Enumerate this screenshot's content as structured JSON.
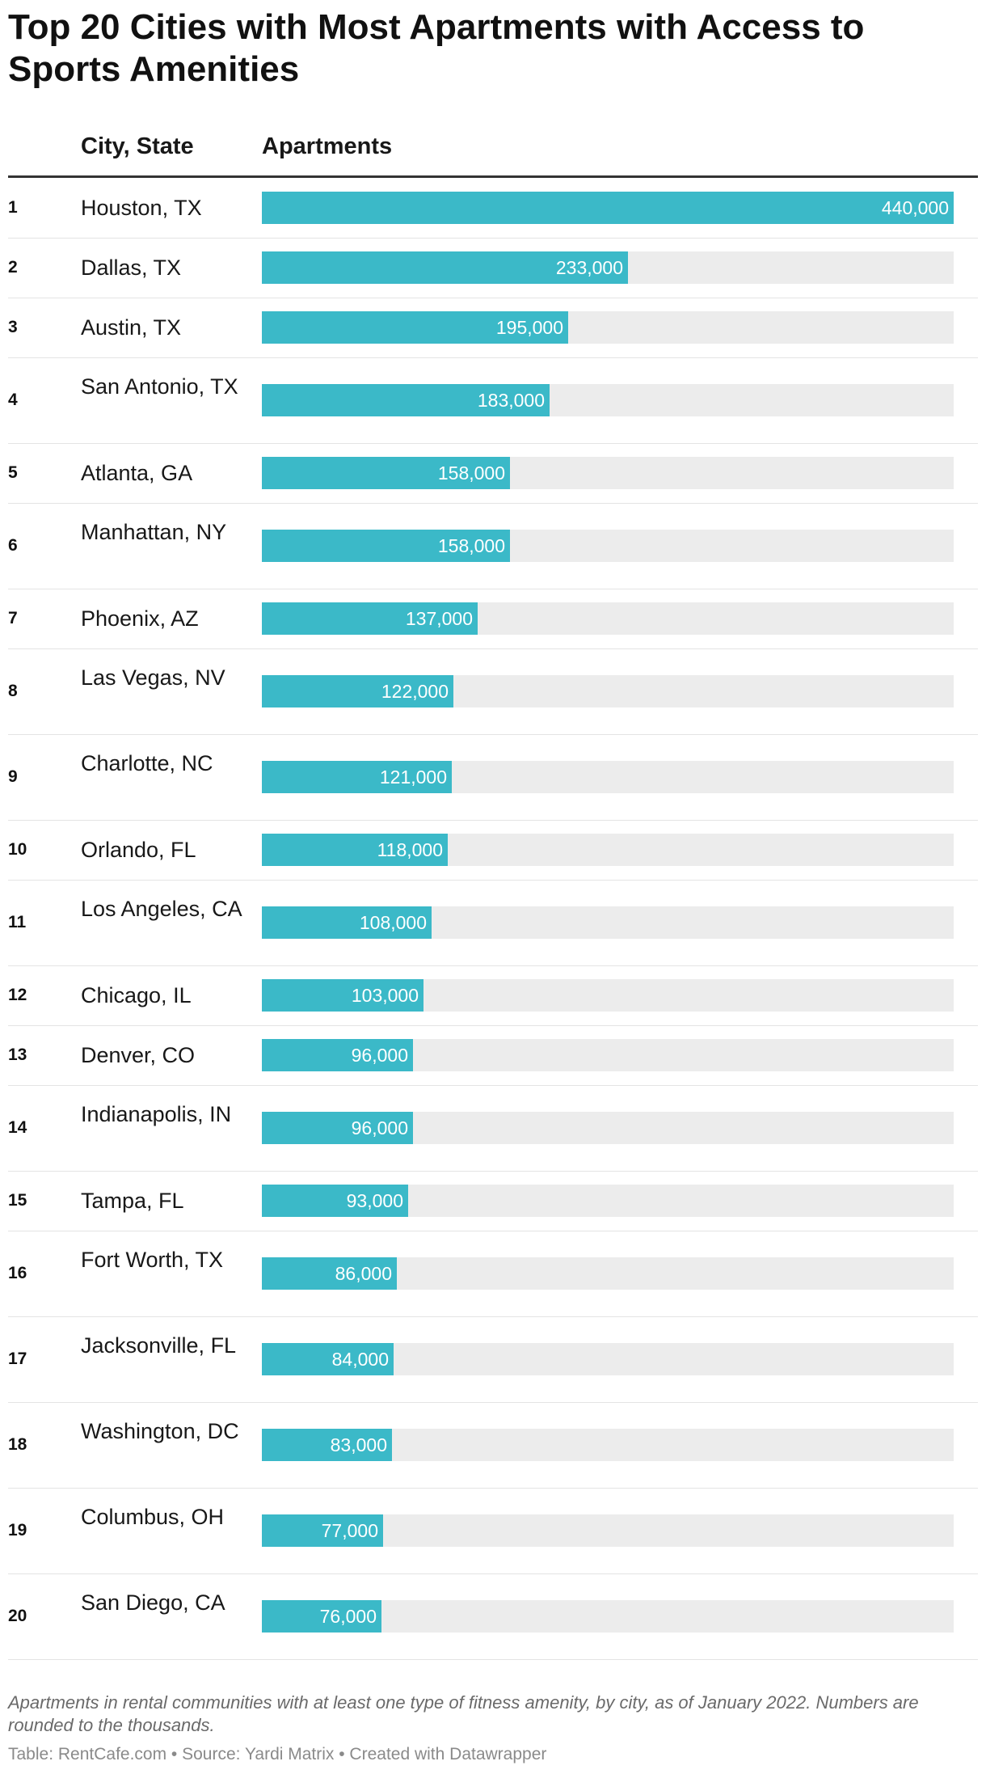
{
  "title": "Top 20 Cities with Most Apartments with Access to Sports Amenities",
  "columns": {
    "city": "City, State",
    "apartments": "Apartments"
  },
  "colors": {
    "bar": "#3bb9c8",
    "track": "#ececec"
  },
  "chart_data": {
    "type": "bar",
    "orientation": "horizontal",
    "title": "Top 20 Cities with Most Apartments with Access to Sports Amenities",
    "xlim": [
      0,
      440000
    ],
    "rows": [
      {
        "rank": "1",
        "city": "Houston, TX",
        "value": 440000,
        "label": "440,000"
      },
      {
        "rank": "2",
        "city": "Dallas, TX",
        "value": 233000,
        "label": "233,000"
      },
      {
        "rank": "3",
        "city": "Austin, TX",
        "value": 195000,
        "label": "195,000"
      },
      {
        "rank": "4",
        "city": "San Antonio, TX",
        "value": 183000,
        "label": "183,000"
      },
      {
        "rank": "5",
        "city": "Atlanta, GA",
        "value": 158000,
        "label": "158,000"
      },
      {
        "rank": "6",
        "city": "Manhattan, NY",
        "value": 158000,
        "label": "158,000"
      },
      {
        "rank": "7",
        "city": "Phoenix, AZ",
        "value": 137000,
        "label": "137,000"
      },
      {
        "rank": "8",
        "city": "Las Vegas, NV",
        "value": 122000,
        "label": "122,000"
      },
      {
        "rank": "9",
        "city": "Charlotte, NC",
        "value": 121000,
        "label": "121,000"
      },
      {
        "rank": "10",
        "city": "Orlando, FL",
        "value": 118000,
        "label": "118,000"
      },
      {
        "rank": "11",
        "city": "Los Angeles, CA",
        "value": 108000,
        "label": "108,000"
      },
      {
        "rank": "12",
        "city": "Chicago, IL",
        "value": 103000,
        "label": "103,000"
      },
      {
        "rank": "13",
        "city": "Denver, CO",
        "value": 96000,
        "label": "96,000"
      },
      {
        "rank": "14",
        "city": "Indianapolis, IN",
        "value": 96000,
        "label": "96,000"
      },
      {
        "rank": "15",
        "city": "Tampa, FL",
        "value": 93000,
        "label": "93,000"
      },
      {
        "rank": "16",
        "city": "Fort Worth, TX",
        "value": 86000,
        "label": "86,000"
      },
      {
        "rank": "17",
        "city": "Jacksonville, FL",
        "value": 84000,
        "label": "84,000"
      },
      {
        "rank": "18",
        "city": "Washington, DC",
        "value": 83000,
        "label": "83,000"
      },
      {
        "rank": "19",
        "city": "Columbus, OH",
        "value": 77000,
        "label": "77,000"
      },
      {
        "rank": "20",
        "city": "San Diego, CA",
        "value": 76000,
        "label": "76,000"
      }
    ]
  },
  "footer": {
    "note": "Apartments in rental communities with at least one type of fitness amenity, by city, as of January 2022. Numbers are rounded to the thousands.",
    "source": "Table: RentCafe.com • Source: Yardi Matrix • Created with Datawrapper"
  }
}
